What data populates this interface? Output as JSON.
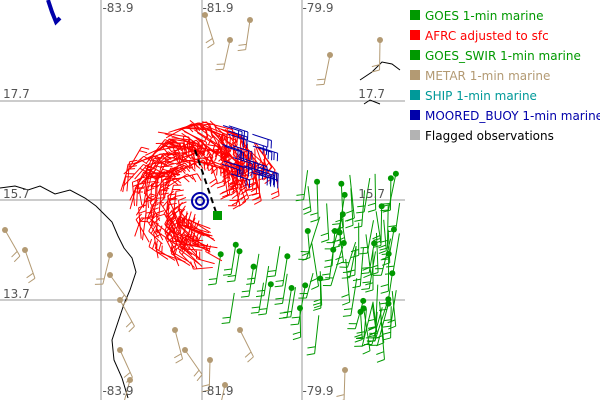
{
  "map": {
    "lon_labels_top": [
      "-83.9",
      "-81.9",
      "-79.9"
    ],
    "lon_labels_bottom": [
      "-83.9",
      "-81.9",
      "-79.9"
    ],
    "lat_labels_left": [
      "17.7",
      "15.7",
      "13.7"
    ],
    "lat_labels_right": [
      "17.7",
      "15.7"
    ]
  },
  "legend": {
    "items": [
      {
        "label": "GOES 1-min marine",
        "color": "#009900",
        "text_color": "#009900"
      },
      {
        "label": "AFRC adjusted to sfc",
        "color": "#ff0000",
        "text_color": "#ff0000"
      },
      {
        "label": "GOES_SWIR 1-min marine",
        "color": "#009900",
        "text_color": "#009900"
      },
      {
        "label": "METAR 1-min marine",
        "color": "#b39a73",
        "text_color": "#b39a73"
      },
      {
        "label": "SHIP 1-min marine",
        "color": "#009999",
        "text_color": "#009999"
      },
      {
        "label": "MOORED_BUOY 1-min marine",
        "color": "#0000aa",
        "text_color": "#0000aa"
      },
      {
        "label": "Flagged observations",
        "color": "#b3b3b3",
        "text_color": "#000000"
      }
    ]
  }
}
